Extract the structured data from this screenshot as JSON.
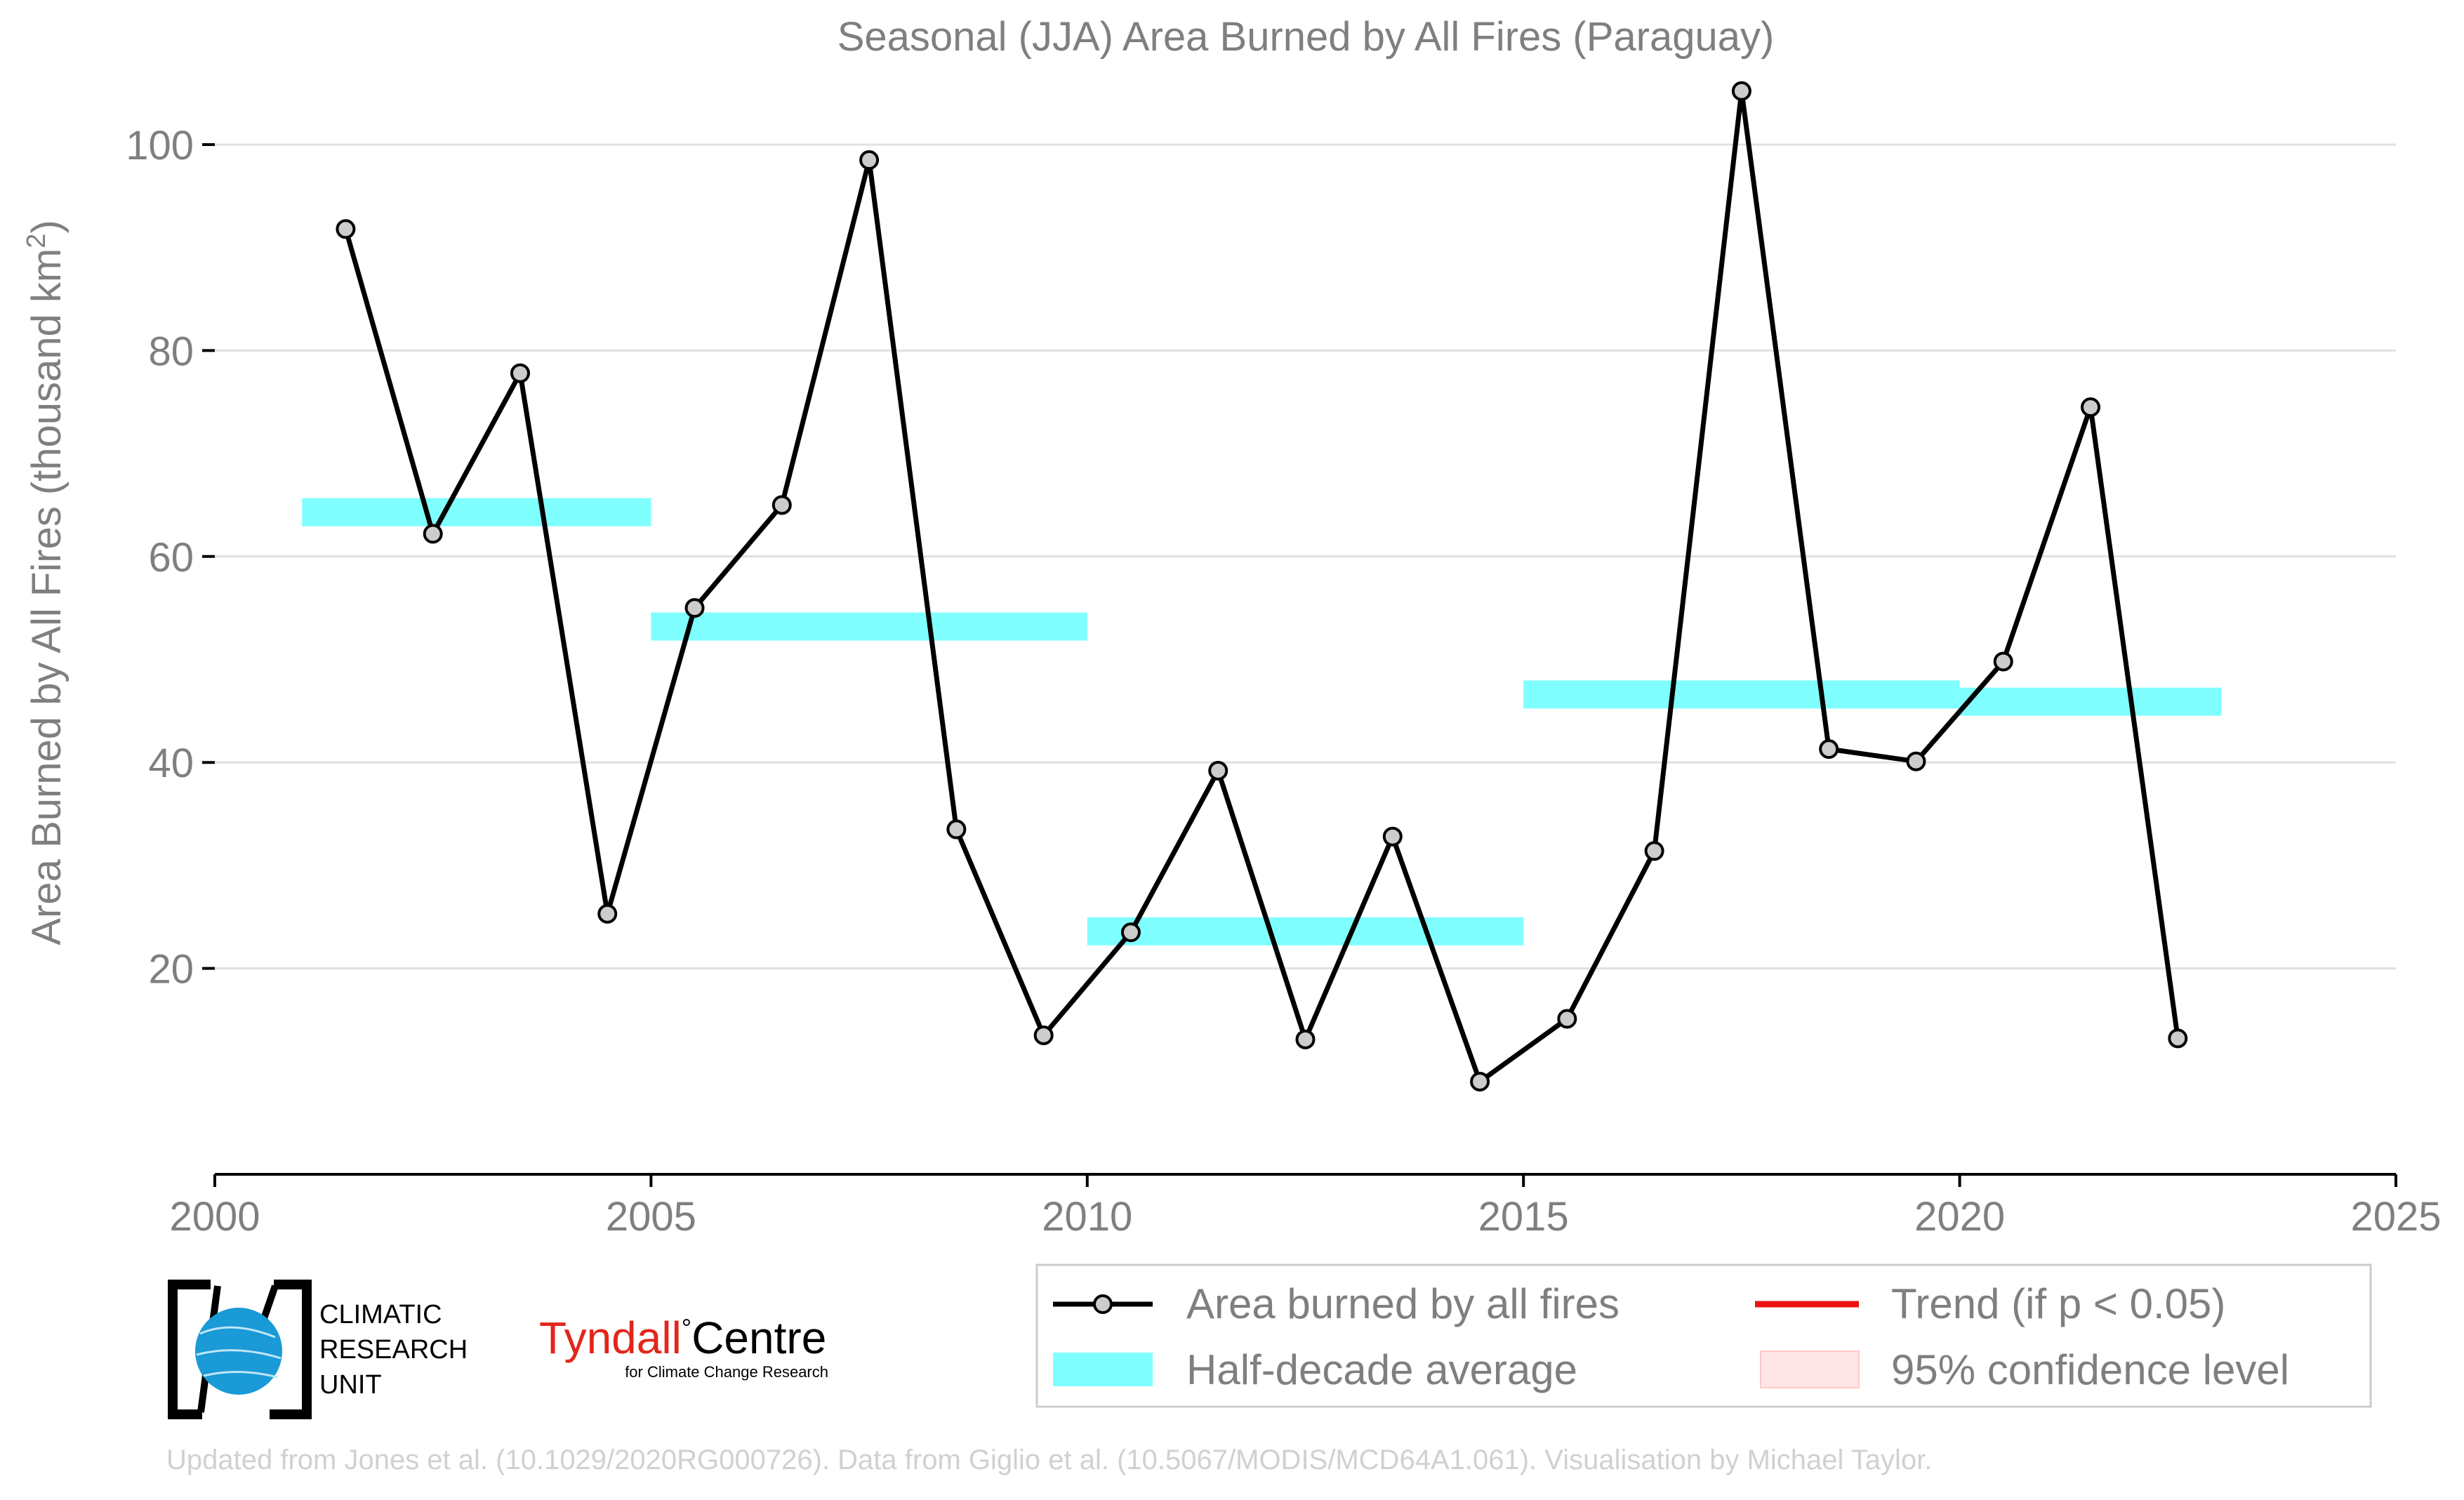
{
  "chart_data": {
    "type": "line",
    "title": "Seasonal (JJA) Area Burned by All Fires (Paraguay)",
    "xlabel": "",
    "ylabel": "Area Burned by All Fires (thousand km",
    "ylabel_sup": "2",
    "ylabel_tail": ")",
    "xlim": [
      2000,
      2025
    ],
    "ylim": [
      0,
      106
    ],
    "x_ticks": [
      2000,
      2005,
      2010,
      2015,
      2020,
      2025
    ],
    "y_ticks": [
      20,
      40,
      60,
      80,
      100
    ],
    "grid": true,
    "series": [
      {
        "name": "Area burned by all fires",
        "color": "#000000",
        "x": [
          2001.5,
          2002.5,
          2003.5,
          2004.5,
          2005.5,
          2006.5,
          2007.5,
          2008.5,
          2009.5,
          2010.5,
          2011.5,
          2012.5,
          2013.5,
          2014.5,
          2015.5,
          2016.5,
          2017.5,
          2018.5,
          2019.5,
          2020.5,
          2021.5,
          2022.5
        ],
        "values": [
          91.8,
          62.2,
          77.8,
          25.3,
          55.0,
          65.0,
          98.5,
          33.5,
          13.5,
          23.5,
          39.2,
          13.1,
          32.8,
          9.0,
          15.1,
          31.4,
          105.2,
          41.3,
          40.1,
          49.8,
          74.5,
          13.2
        ]
      }
    ],
    "half_decade_averages": {
      "name": "Half-decade average",
      "color": "#7fffff",
      "segments": [
        {
          "x0": 2001,
          "x1": 2005,
          "value": 64.3
        },
        {
          "x0": 2005,
          "x1": 2010,
          "value": 53.2
        },
        {
          "x0": 2010,
          "x1": 2015,
          "value": 23.6
        },
        {
          "x0": 2015,
          "x1": 2020,
          "value": 46.6
        },
        {
          "x0": 2020,
          "x1": 2023,
          "value": 45.9
        }
      ]
    },
    "legend": {
      "placement": "bottom-right",
      "items": [
        {
          "label": "Area burned by all fires",
          "kind": "line-marker",
          "color": "#000000"
        },
        {
          "label": "Trend (if p < 0.05)",
          "kind": "line",
          "color": "#ee1111"
        },
        {
          "label": "Half-decade average",
          "kind": "patch",
          "color": "#7fffff"
        },
        {
          "label": "95% confidence level",
          "kind": "patch",
          "color": "#ffe6e6"
        }
      ]
    }
  },
  "logos": {
    "cru": {
      "line1": "CLIMATIC",
      "line2": "RESEARCH",
      "line3": "UNIT"
    },
    "tyndall": {
      "name_part1": "Tyndall",
      "degree": "°",
      "name_part2": "Centre",
      "tagline": "for Climate Change Research"
    }
  },
  "footer": {
    "credit": "Updated from Jones et al. (10.1029/2020RG000726). Data from Giglio et al. (10.5067/MODIS/MCD64A1.061). Visualisation by Michael Taylor."
  },
  "colors": {
    "text_gray": "#7f7f7f",
    "grid": "#e0e0e0",
    "marker_fill": "#cccccc",
    "footer_gray": "#d0d0d0",
    "cru_blue": "#1a9ad6",
    "tyndall_red": "#e2261b"
  }
}
